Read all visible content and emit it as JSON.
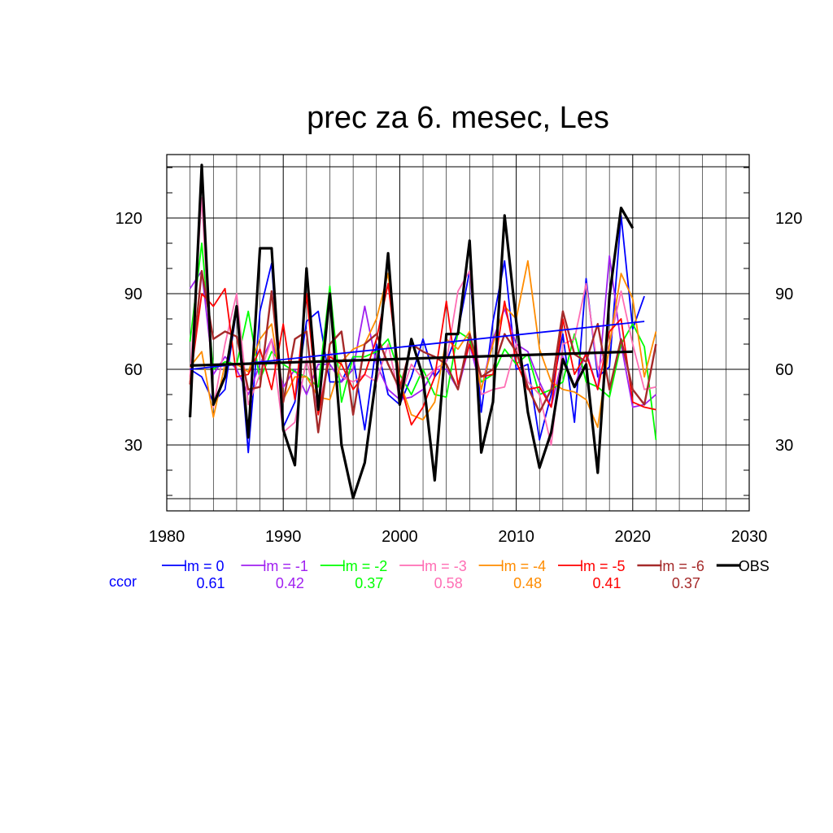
{
  "chart_data": {
    "type": "line",
    "title": "prec za 6. mesec, Les",
    "xlabel": "",
    "ylabel": "",
    "xlim": [
      1980,
      2030
    ],
    "ylim": [
      5,
      140
    ],
    "x_ticks": [
      1980,
      1990,
      2000,
      2010,
      2020,
      2030
    ],
    "y_ticks": [
      30,
      60,
      90,
      120
    ],
    "x_tick_labels": [
      "1980",
      "1990",
      "2000",
      "2010",
      "2020",
      "2030"
    ],
    "y_tick_labels": [
      "30",
      "60",
      "90",
      "120"
    ],
    "grid": true,
    "legend_position": "bottom",
    "ccor_label": "ccor",
    "series": [
      {
        "name": "lm = 0",
        "color": "#0000ff",
        "ccor": "0.61",
        "stroke": 1.8,
        "x": [
          1982,
          1983,
          1984,
          1985,
          1986,
          1987,
          1988,
          1989,
          1990,
          1991,
          1992,
          1993,
          1994,
          1995,
          1996,
          1997,
          1998,
          1999,
          2000,
          2001,
          2002,
          2003,
          2004,
          2005,
          2006,
          2007,
          2008,
          2009,
          2010,
          2011,
          2012,
          2013,
          2014,
          2015,
          2016,
          2017,
          2018,
          2019,
          2020,
          2021
        ],
        "values": [
          60,
          57,
          47,
          52,
          84,
          27,
          83,
          102,
          37,
          47,
          79,
          83,
          55,
          55,
          65,
          36,
          70,
          50,
          46,
          57,
          72,
          57,
          63,
          75,
          99,
          43,
          79,
          103,
          60,
          62,
          32,
          50,
          74,
          39,
          96,
          57,
          61,
          121,
          76,
          89
        ],
        "trend": [
          60,
          79
        ]
      },
      {
        "name": "lm = -1",
        "color": "#a020f0",
        "ccor": "0.42",
        "stroke": 1.8,
        "x": [
          1982,
          1983,
          1984,
          1985,
          1986,
          1987,
          1988,
          1989,
          1990,
          1991,
          1992,
          1993,
          1994,
          1995,
          1996,
          1997,
          1998,
          1999,
          2000,
          2001,
          2002,
          2003,
          2004,
          2005,
          2006,
          2007,
          2008,
          2009,
          2010,
          2011,
          2012,
          2013,
          2014,
          2015,
          2016,
          2017,
          2018,
          2019,
          2020,
          2021,
          2022
        ],
        "values": [
          92,
          99,
          58,
          65,
          60,
          50,
          62,
          72,
          53,
          60,
          50,
          62,
          62,
          55,
          60,
          85,
          62,
          52,
          48,
          49,
          52,
          60,
          60,
          52,
          70,
          52,
          72,
          84,
          70,
          67,
          55,
          45,
          65,
          53,
          67,
          52,
          105,
          70,
          45,
          46,
          50
        ]
      },
      {
        "name": "lm = -2",
        "color": "#00ff00",
        "ccor": "0.37",
        "stroke": 1.8,
        "x": [
          1982,
          1983,
          1984,
          1985,
          1986,
          1987,
          1988,
          1989,
          1990,
          1991,
          1992,
          1993,
          1994,
          1995,
          1996,
          1997,
          1998,
          1999,
          2000,
          2001,
          2002,
          2003,
          2004,
          2005,
          2006,
          2007,
          2008,
          2009,
          2010,
          2011,
          2012,
          2013,
          2014,
          2015,
          2016,
          2017,
          2018,
          2019,
          2020,
          2021,
          2022
        ],
        "values": [
          71,
          110,
          60,
          63,
          62,
          83,
          56,
          67,
          62,
          59,
          57,
          53,
          93,
          47,
          65,
          65,
          67,
          72,
          58,
          50,
          60,
          50,
          49,
          75,
          72,
          55,
          58,
          68,
          62,
          66,
          50,
          52,
          55,
          74,
          55,
          53,
          49,
          70,
          78,
          69,
          32
        ]
      },
      {
        "name": "lm = -3",
        "color": "#ff6eb4",
        "ccor": "0.58",
        "stroke": 1.8,
        "x": [
          1982,
          1983,
          1984,
          1985,
          1986,
          1987,
          1988,
          1989,
          1990,
          1991,
          1992,
          1993,
          1994,
          1995,
          1996,
          1997,
          1998,
          1999,
          2000,
          2001,
          2002,
          2003,
          2004,
          2005,
          2006,
          2007,
          2008,
          2009,
          2010,
          2011,
          2012,
          2013,
          2014,
          2015,
          2016,
          2017,
          2018,
          2019,
          2020,
          2021,
          2022
        ],
        "values": [
          57,
          128,
          45,
          70,
          90,
          46,
          58,
          72,
          35,
          39,
          64,
          43,
          67,
          57,
          55,
          58,
          55,
          70,
          48,
          62,
          56,
          60,
          63,
          91,
          99,
          50,
          52,
          53,
          70,
          55,
          50,
          30,
          70,
          72,
          94,
          60,
          70,
          91,
          70,
          52,
          53
        ]
      },
      {
        "name": "lm = -4",
        "color": "#ff8c00",
        "ccor": "0.48",
        "stroke": 1.8,
        "x": [
          1982,
          1983,
          1984,
          1985,
          1986,
          1987,
          1988,
          1989,
          1990,
          1991,
          1992,
          1993,
          1994,
          1995,
          1996,
          1997,
          1998,
          1999,
          2000,
          2001,
          2002,
          2003,
          2004,
          2005,
          2006,
          2007,
          2008,
          2009,
          2010,
          2011,
          2012,
          2013,
          2014,
          2015,
          2016,
          2017,
          2018,
          2019,
          2020,
          2021,
          2022
        ],
        "values": [
          61,
          67,
          41,
          62,
          62,
          59,
          72,
          78,
          48,
          57,
          57,
          49,
          48,
          63,
          68,
          70,
          80,
          98,
          55,
          42,
          40,
          47,
          72,
          68,
          75,
          52,
          70,
          85,
          80,
          103,
          68,
          55,
          52,
          51,
          48,
          37,
          70,
          98,
          88,
          57,
          75
        ]
      },
      {
        "name": "lm = -5",
        "color": "#ff0000",
        "ccor": "0.41",
        "stroke": 1.8,
        "x": [
          1982,
          1983,
          1984,
          1985,
          1986,
          1987,
          1988,
          1989,
          1990,
          1991,
          1992,
          1993,
          1994,
          1995,
          1996,
          1997,
          1998,
          1999,
          2000,
          2001,
          2002,
          2003,
          2004,
          2005,
          2006,
          2007,
          2008,
          2009,
          2010,
          2011,
          2012,
          2013,
          2014,
          2015,
          2016,
          2017,
          2018,
          2019,
          2020,
          2021,
          2022
        ],
        "values": [
          55,
          90,
          85,
          92,
          57,
          58,
          68,
          52,
          78,
          48,
          90,
          42,
          65,
          62,
          52,
          58,
          72,
          94,
          55,
          38,
          45,
          57,
          87,
          54,
          70,
          57,
          58,
          87,
          63,
          52,
          53,
          45,
          80,
          58,
          66,
          52,
          75,
          80,
          47,
          45,
          44
        ]
      },
      {
        "name": "lm = -6",
        "color": "#a52a2a",
        "ccor": "0.37",
        "stroke": 2.4,
        "x": [
          1982,
          1983,
          1984,
          1985,
          1986,
          1987,
          1988,
          1989,
          1990,
          1991,
          1992,
          1993,
          1994,
          1995,
          1996,
          1997,
          1998,
          1999,
          2000,
          2001,
          2002,
          2003,
          2004,
          2005,
          2006,
          2007,
          2008,
          2009,
          2010,
          2011,
          2012,
          2013,
          2014,
          2015,
          2016,
          2017,
          2018,
          2019,
          2020,
          2021,
          2022
        ],
        "values": [
          54,
          99,
          72,
          75,
          73,
          52,
          53,
          91,
          47,
          72,
          75,
          35,
          70,
          75,
          42,
          70,
          74,
          62,
          52,
          70,
          67,
          65,
          62,
          52,
          74,
          57,
          60,
          74,
          67,
          53,
          43,
          52,
          83,
          66,
          63,
          78,
          52,
          72,
          52,
          46,
          70
        ]
      },
      {
        "name": "OBS",
        "color": "#000000",
        "ccor": "",
        "stroke": 3.2,
        "x": [
          1982,
          1983,
          1984,
          1985,
          1986,
          1987,
          1988,
          1989,
          1990,
          1991,
          1992,
          1993,
          1994,
          1995,
          1996,
          1997,
          1998,
          1999,
          2000,
          2001,
          2002,
          2003,
          2004,
          2005,
          2006,
          2007,
          2008,
          2009,
          2010,
          2011,
          2012,
          2013,
          2014,
          2015,
          2016,
          2017,
          2018,
          2019,
          2020
        ],
        "values": [
          41,
          141,
          46,
          57,
          85,
          33,
          108,
          108,
          36,
          22,
          100,
          44,
          90,
          30,
          9,
          23,
          58,
          106,
          46,
          72,
          57,
          16,
          74,
          74,
          111,
          27,
          47,
          121,
          79,
          43,
          21,
          35,
          64,
          53,
          62,
          19,
          89,
          124,
          116
        ],
        "trend": [
          61.5,
          67
        ]
      }
    ]
  }
}
